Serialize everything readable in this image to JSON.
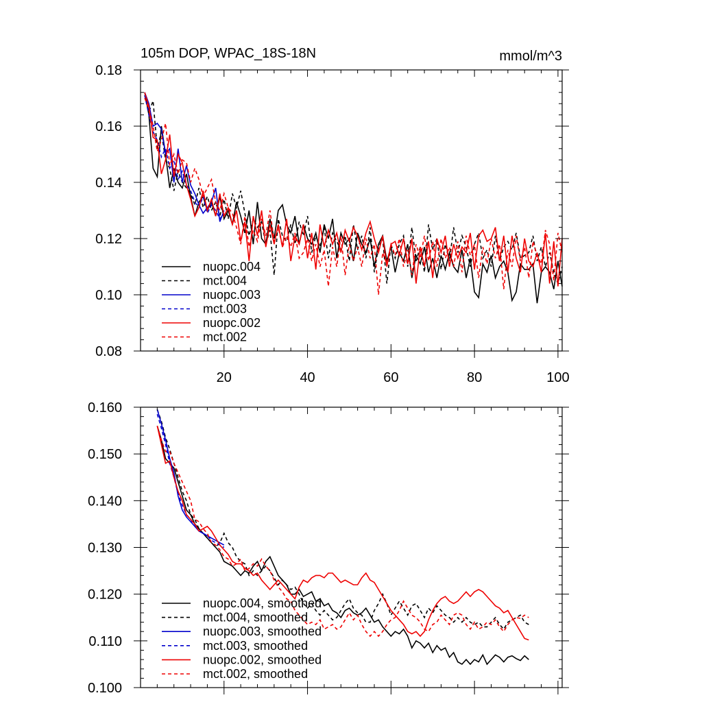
{
  "chart_data": [
    {
      "type": "line",
      "title": "105m DOP, WPAC_18S-18N",
      "units": "mmol/m^3",
      "xlabel": "",
      "ylabel": "",
      "xlim": [
        0,
        101
      ],
      "ylim": [
        0.08,
        0.18
      ],
      "x_ticks": [
        20,
        40,
        60,
        80,
        100
      ],
      "x_tick_labels": [
        "20",
        "40",
        "60",
        "80",
        "100"
      ],
      "y_ticks": [
        0.08,
        0.1,
        0.12,
        0.14,
        0.16,
        0.18
      ],
      "y_tick_labels": [
        "0.08",
        "0.10",
        "0.12",
        "0.14",
        "0.16",
        "0.18"
      ],
      "legend_position": "bottom-left",
      "series": [
        {
          "name": "nuopc.004",
          "color": "#000000",
          "dash": "solid",
          "x_start": 1,
          "values": [
            0.172,
            0.164,
            0.145,
            0.142,
            0.16,
            0.15,
            0.138,
            0.145,
            0.14,
            0.138,
            0.143,
            0.135,
            0.128,
            0.133,
            0.135,
            0.13,
            0.133,
            0.128,
            0.135,
            0.127,
            0.13,
            0.125,
            0.133,
            0.128,
            0.122,
            0.13,
            0.118,
            0.133,
            0.12,
            0.118,
            0.127,
            0.12,
            0.13,
            0.132,
            0.125,
            0.122,
            0.128,
            0.118,
            0.125,
            0.12,
            0.118,
            0.122,
            0.115,
            0.125,
            0.12,
            0.127,
            0.113,
            0.122,
            0.118,
            0.12,
            0.112,
            0.122,
            0.118,
            0.115,
            0.12,
            0.11,
            0.118,
            0.121,
            0.112,
            0.117,
            0.108,
            0.115,
            0.112,
            0.118,
            0.106,
            0.114,
            0.111,
            0.117,
            0.108,
            0.113,
            0.106,
            0.114,
            0.109,
            0.115,
            0.11,
            0.108,
            0.116,
            0.106,
            0.113,
            0.101,
            0.099,
            0.111,
            0.108,
            0.114,
            0.106,
            0.11,
            0.112,
            0.108,
            0.098,
            0.101,
            0.111,
            0.109,
            0.109,
            0.111,
            0.097,
            0.108,
            0.11,
            0.108,
            0.102,
            0.112,
            0.103
          ]
        },
        {
          "name": "mct.004",
          "color": "#000000",
          "dash": "dashed",
          "x_start": 1,
          "values": [
            0.171,
            0.165,
            0.169,
            0.152,
            0.158,
            0.148,
            0.145,
            0.137,
            0.144,
            0.14,
            0.138,
            0.136,
            0.132,
            0.138,
            0.131,
            0.135,
            0.13,
            0.133,
            0.128,
            0.134,
            0.127,
            0.136,
            0.131,
            0.137,
            0.129,
            0.121,
            0.127,
            0.124,
            0.126,
            0.118,
            0.123,
            0.107,
            0.127,
            0.121,
            0.119,
            0.125,
            0.118,
            0.126,
            0.121,
            0.128,
            0.115,
            0.121,
            0.117,
            0.124,
            0.113,
            0.122,
            0.119,
            0.116,
            0.121,
            0.112,
            0.125,
            0.116,
            0.121,
            0.113,
            0.124,
            0.108,
            0.117,
            0.12,
            0.104,
            0.118,
            0.113,
            0.118,
            0.121,
            0.11,
            0.124,
            0.112,
            0.117,
            0.108,
            0.125,
            0.116,
            0.12,
            0.109,
            0.118,
            0.112,
            0.124,
            0.115,
            0.121,
            0.117,
            0.11,
            0.118,
            0.122,
            0.113,
            0.116,
            0.11,
            0.121,
            0.112,
            0.117,
            0.119,
            0.116,
            0.122,
            0.113,
            0.114,
            0.115,
            0.121,
            0.112,
            0.117,
            0.11,
            0.115,
            0.108,
            0.104,
            0.11
          ]
        },
        {
          "name": "nuopc.003",
          "color": "#0000cc",
          "dash": "solid",
          "x_start": 1,
          "values": [
            0.172,
            0.168,
            0.16,
            0.161,
            0.159,
            0.15,
            0.152,
            0.14,
            0.152,
            0.14,
            0.146,
            0.139,
            0.136,
            0.132,
            0.129,
            0.131,
            0.133,
            0.138,
            0.126,
            0.13
          ]
        },
        {
          "name": "mct.003",
          "color": "#0000cc",
          "dash": "dashed",
          "x_start": 1,
          "values": [
            0.171,
            0.164,
            0.158,
            0.155,
            0.149,
            0.152,
            0.145,
            0.148,
            0.141,
            0.144,
            0.139,
            0.137,
            0.133,
            0.131,
            0.135,
            0.129,
            0.132,
            0.13,
            0.127,
            0.129
          ]
        },
        {
          "name": "nuopc.002",
          "color": "#ee0000",
          "dash": "solid",
          "x_start": 1,
          "values": [
            0.172,
            0.167,
            0.156,
            0.155,
            0.143,
            0.148,
            0.157,
            0.142,
            0.15,
            0.147,
            0.139,
            0.134,
            0.128,
            0.131,
            0.137,
            0.13,
            0.134,
            0.128,
            0.136,
            0.128,
            0.131,
            0.125,
            0.13,
            0.119,
            0.126,
            0.112,
            0.128,
            0.121,
            0.13,
            0.117,
            0.125,
            0.118,
            0.125,
            0.117,
            0.127,
            0.112,
            0.121,
            0.118,
            0.125,
            0.113,
            0.122,
            0.109,
            0.125,
            0.117,
            0.123,
            0.118,
            0.122,
            0.115,
            0.123,
            0.119,
            0.124,
            0.121,
            0.116,
            0.122,
            0.126,
            0.12,
            0.115,
            0.121,
            0.11,
            0.118,
            0.119,
            0.114,
            0.12,
            0.111,
            0.12,
            0.104,
            0.117,
            0.11,
            0.119,
            0.106,
            0.12,
            0.115,
            0.121,
            0.11,
            0.118,
            0.113,
            0.117,
            0.115,
            0.122,
            0.109,
            0.121,
            0.123,
            0.119,
            0.12,
            0.124,
            0.112,
            0.121,
            0.108,
            0.121,
            0.113,
            0.108,
            0.12,
            0.112,
            0.11,
            0.115,
            0.108,
            0.122,
            0.104,
            0.119,
            0.103,
            0.12
          ]
        },
        {
          "name": "mct.002",
          "color": "#ee0000",
          "dash": "dashed",
          "x_start": 1,
          "values": [
            0.17,
            0.166,
            0.16,
            0.151,
            0.155,
            0.161,
            0.146,
            0.15,
            0.143,
            0.148,
            0.147,
            0.14,
            0.145,
            0.141,
            0.135,
            0.138,
            0.141,
            0.133,
            0.13,
            0.136,
            0.131,
            0.129,
            0.124,
            0.118,
            0.128,
            0.117,
            0.123,
            0.119,
            0.127,
            0.121,
            0.13,
            0.119,
            0.124,
            0.117,
            0.121,
            0.117,
            0.122,
            0.113,
            0.115,
            0.12,
            0.112,
            0.118,
            0.11,
            0.116,
            0.103,
            0.117,
            0.11,
            0.121,
            0.107,
            0.118,
            0.112,
            0.117,
            0.11,
            0.12,
            0.113,
            0.118,
            0.1,
            0.115,
            0.111,
            0.118,
            0.114,
            0.12,
            0.11,
            0.116,
            0.107,
            0.118,
            0.113,
            0.121,
            0.112,
            0.119,
            0.11,
            0.12,
            0.113,
            0.117,
            0.11,
            0.119,
            0.108,
            0.121,
            0.114,
            0.118,
            0.106,
            0.117,
            0.111,
            0.12,
            0.113,
            0.118,
            0.102,
            0.116,
            0.11,
            0.121,
            0.112,
            0.117,
            0.106,
            0.119,
            0.114,
            0.111,
            0.123,
            0.118,
            0.105,
            0.122,
            0.115
          ]
        }
      ]
    },
    {
      "type": "line",
      "title": "",
      "xlabel": "",
      "ylabel": "",
      "xlim": [
        0,
        101
      ],
      "ylim": [
        0.1,
        0.16
      ],
      "x_ticks": [
        20,
        40,
        60,
        80,
        100
      ],
      "x_tick_labels": [],
      "y_ticks": [
        0.1,
        0.11,
        0.12,
        0.13,
        0.14,
        0.15,
        0.16
      ],
      "y_tick_labels": [
        "0.100",
        "0.110",
        "0.120",
        "0.130",
        "0.140",
        "0.150",
        "0.160"
      ],
      "legend_position": "bottom-left",
      "series": [
        {
          "name": "nuopc.004, smoothed",
          "color": "#000000",
          "dash": "solid",
          "x_start": 4,
          "values": [
            0.156,
            0.153,
            0.149,
            0.148,
            0.147,
            0.144,
            0.141,
            0.138,
            0.137,
            0.135,
            0.134,
            0.133,
            0.132,
            0.131,
            0.13,
            0.129,
            0.127,
            0.1265,
            0.126,
            0.125,
            0.124,
            0.125,
            0.1245,
            0.126,
            0.127,
            0.125,
            0.127,
            0.128,
            0.126,
            0.124,
            0.123,
            0.122,
            0.12,
            0.12,
            0.121,
            0.1195,
            0.12,
            0.1205,
            0.1185,
            0.119,
            0.1175,
            0.118,
            0.1165,
            0.116,
            0.115,
            0.1165,
            0.117,
            0.116,
            0.1155,
            0.116,
            0.117,
            0.1155,
            0.114,
            0.1145,
            0.113,
            0.112,
            0.111,
            0.112,
            0.1115,
            0.1125,
            0.111,
            0.1085,
            0.11,
            0.1095,
            0.1085,
            0.1095,
            0.1075,
            0.109,
            0.108,
            0.1085,
            0.1065,
            0.1075,
            0.1055,
            0.105,
            0.106,
            0.105,
            0.106,
            0.1055,
            0.107,
            0.105,
            0.106,
            0.107,
            0.1065,
            0.1055,
            0.1065,
            0.1068,
            0.1062,
            0.1058,
            0.1068,
            0.106
          ]
        },
        {
          "name": "mct.004, smoothed",
          "color": "#000000",
          "dash": "dashed",
          "x_start": 4,
          "values": [
            0.1595,
            0.157,
            0.1535,
            0.151,
            0.148,
            0.145,
            0.142,
            0.14,
            0.137,
            0.136,
            0.134,
            0.133,
            0.132,
            0.131,
            0.13,
            0.131,
            0.133,
            0.131,
            0.13,
            0.128,
            0.127,
            0.1265,
            0.124,
            0.125,
            0.124,
            0.125,
            0.126,
            0.125,
            0.1235,
            0.122,
            0.123,
            0.122,
            0.121,
            0.1215,
            0.12,
            0.118,
            0.117,
            0.118,
            0.1165,
            0.1155,
            0.1165,
            0.1155,
            0.1145,
            0.115,
            0.1165,
            0.118,
            0.119,
            0.117,
            0.116,
            0.1155,
            0.114,
            0.114,
            0.1165,
            0.118,
            0.12,
            0.118,
            0.1155,
            0.117,
            0.1185,
            0.117,
            0.1155,
            0.1175,
            0.118,
            0.1165,
            0.115,
            0.117,
            0.116,
            0.1175,
            0.1165,
            0.1155,
            0.115,
            0.114,
            0.115,
            0.114,
            0.115,
            0.114,
            0.1135,
            0.114,
            0.113,
            0.113,
            0.114,
            0.115,
            0.1135,
            0.1125,
            0.114,
            0.1145,
            0.115,
            0.1155,
            0.114,
            0.1135
          ]
        },
        {
          "name": "nuopc.003, smoothed",
          "color": "#0000cc",
          "dash": "solid",
          "x_start": 4,
          "values": [
            0.1595,
            0.1565,
            0.153,
            0.149,
            0.146,
            0.141,
            0.138,
            0.1365,
            0.1355,
            0.1345,
            0.1335,
            0.133,
            0.1325,
            0.132,
            0.1315,
            0.131,
            0.1305
          ]
        },
        {
          "name": "mct.003, smoothed",
          "color": "#0000cc",
          "dash": "dashed",
          "x_start": 4,
          "values": [
            0.1585,
            0.1555,
            0.152,
            0.148,
            0.145,
            0.1415,
            0.139,
            0.137,
            0.136,
            0.1345,
            0.1335,
            0.133,
            0.1325,
            0.1315,
            0.131,
            0.1305,
            0.13
          ]
        },
        {
          "name": "nuopc.002, smoothed",
          "color": "#ee0000",
          "dash": "solid",
          "x_start": 4,
          "values": [
            0.156,
            0.152,
            0.148,
            0.1485,
            0.145,
            0.142,
            0.14,
            0.137,
            0.136,
            0.135,
            0.1335,
            0.134,
            0.1345,
            0.1335,
            0.132,
            0.1305,
            0.1295,
            0.1285,
            0.127,
            0.1265,
            0.1265,
            0.1255,
            0.125,
            0.124,
            0.1245,
            0.123,
            0.122,
            0.121,
            0.122,
            0.123,
            0.122,
            0.121,
            0.12,
            0.119,
            0.1215,
            0.123,
            0.1225,
            0.1235,
            0.124,
            0.124,
            0.1235,
            0.1245,
            0.1245,
            0.1235,
            0.1225,
            0.123,
            0.1225,
            0.122,
            0.122,
            0.1235,
            0.1245,
            0.123,
            0.1225,
            0.121,
            0.1195,
            0.118,
            0.1165,
            0.1155,
            0.1145,
            0.1135,
            0.112,
            0.1115,
            0.112,
            0.111,
            0.112,
            0.1145,
            0.1165,
            0.118,
            0.119,
            0.1195,
            0.1185,
            0.118,
            0.1185,
            0.1195,
            0.1205,
            0.1195,
            0.1205,
            0.121,
            0.1205,
            0.1195,
            0.1185,
            0.1175,
            0.117,
            0.116,
            0.1165,
            0.115,
            0.1135,
            0.112,
            0.1105,
            0.1102
          ]
        },
        {
          "name": "mct.002, smoothed",
          "color": "#ee0000",
          "dash": "dashed",
          "x_start": 4,
          "values": [
            0.156,
            0.153,
            0.1505,
            0.1505,
            0.148,
            0.146,
            0.144,
            0.142,
            0.14,
            0.136,
            0.1355,
            0.134,
            0.133,
            0.131,
            0.1305,
            0.1295,
            0.128,
            0.1275,
            0.126,
            0.1265,
            0.1275,
            0.125,
            0.1255,
            0.1265,
            0.126,
            0.1275,
            0.126,
            0.125,
            0.123,
            0.1215,
            0.1205,
            0.119,
            0.1185,
            0.1165,
            0.1155,
            0.1145,
            0.1135,
            0.114,
            0.1135,
            0.1145,
            0.1125,
            0.113,
            0.1135,
            0.1125,
            0.113,
            0.1145,
            0.116,
            0.1145,
            0.1155,
            0.1135,
            0.112,
            0.111,
            0.112,
            0.111,
            0.112,
            0.1135,
            0.1145,
            0.115,
            0.1165,
            0.1185,
            0.117,
            0.1155,
            0.115,
            0.114,
            0.1125,
            0.112,
            0.1135,
            0.114,
            0.1155,
            0.1145,
            0.1135,
            0.1155,
            0.116,
            0.1155,
            0.1135,
            0.1125,
            0.114,
            0.1125,
            0.113,
            0.114,
            0.1135,
            0.1145,
            0.113,
            0.112,
            0.1135,
            0.1145,
            0.115,
            0.1148,
            0.1155,
            0.115
          ]
        }
      ]
    }
  ]
}
